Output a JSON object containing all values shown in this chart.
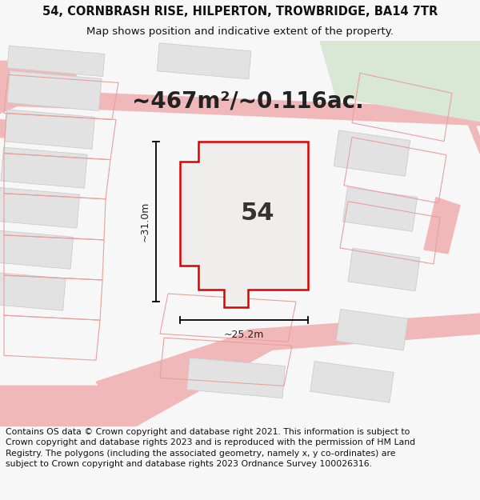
{
  "title_line1": "54, CORNBRASH RISE, HILPERTON, TROWBRIDGE, BA14 7TR",
  "title_line2": "Map shows position and indicative extent of the property.",
  "area_label": "~467m²/~0.116ac.",
  "plot_number": "54",
  "dim_width": "~25.2m",
  "dim_height": "~31.0m",
  "footer_text": "Contains OS data © Crown copyright and database right 2021. This information is subject to Crown copyright and database rights 2023 and is reproduced with the permission of HM Land Registry. The polygons (including the associated geometry, namely x, y co-ordinates) are subject to Crown copyright and database rights 2023 Ordnance Survey 100026316.",
  "bg_color": "#f7f7f7",
  "map_bg": "#f2efef",
  "plot_fill": "#f0eeed",
  "road_color": "#f0b8b8",
  "plot_border": "#dd0000",
  "building_fill": "#e2e2e2",
  "building_edge": "#cccccc",
  "green_fill": "#d9e8d5",
  "title_fontsize": 10.5,
  "subtitle_fontsize": 9.5,
  "area_fontsize": 20,
  "plot_num_fontsize": 22,
  "footer_fontsize": 7.8,
  "dim_fontsize": 9
}
